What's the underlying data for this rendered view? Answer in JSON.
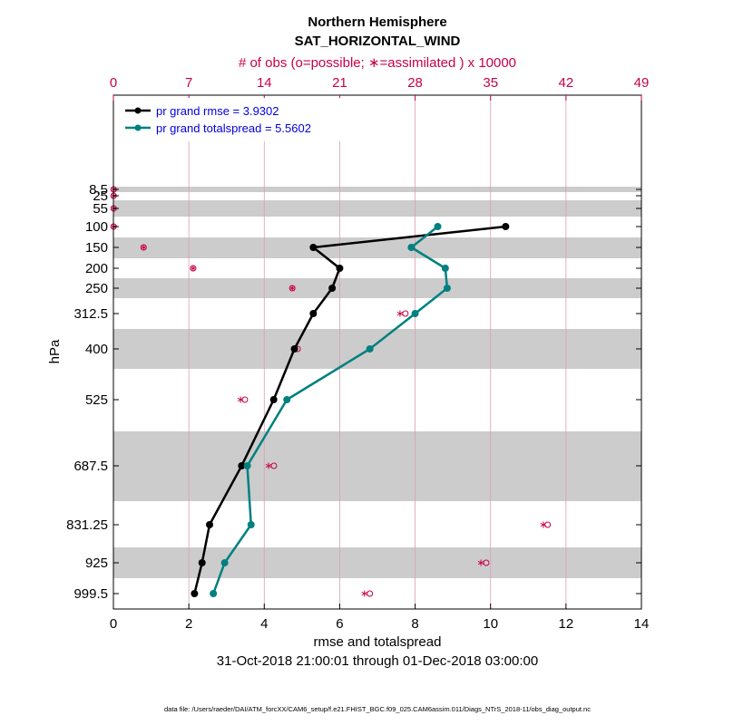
{
  "chart_data": {
    "type": "line",
    "title": "Northern Hemisphere",
    "subtitle": "SAT_HORIZONTAL_WIND",
    "top_axis_label": "# of obs (o=possible; ∗=assimilated ) x 10000",
    "xlabel": "rmse and totalspread",
    "ylabel": "hPa",
    "date_range": "31-Oct-2018 21:00:01 through 01-Dec-2018 03:00:00",
    "footnote": "data file: /Users/raeder/DAI/ATM_forcXX/CAM6_setup/f.e21.FHIST_BGC.f09_025.CAM6assim.011/Diags_NTrS_2018-11/obs_diag_output.nc",
    "xlim": [
      0,
      14
    ],
    "x_ticks": [
      "0",
      "2",
      "4",
      "6",
      "8",
      "10",
      "12",
      "14"
    ],
    "top_xlim": [
      0,
      49
    ],
    "top_ticks": [
      "0",
      "7",
      "14",
      "21",
      "28",
      "35",
      "42",
      "49"
    ],
    "levels": [
      "8.5",
      "25",
      "55",
      "100",
      "150",
      "200",
      "250",
      "312.5",
      "400",
      "525",
      "687.5",
      "831.25",
      "925",
      "999.5"
    ],
    "series": [
      {
        "name": "pr grand rmse = 3.9302",
        "color": "#000000",
        "levels": [
          "100",
          "150",
          "200",
          "250",
          "312.5",
          "400",
          "525",
          "687.5",
          "831.25",
          "925",
          "999.5"
        ],
        "values": [
          10.4,
          5.3,
          6.0,
          5.8,
          5.3,
          4.8,
          4.25,
          3.4,
          2.55,
          2.35,
          2.15
        ]
      },
      {
        "name": "pr grand totalspread = 5.5602",
        "color": "#008080",
        "levels": [
          "100",
          "150",
          "200",
          "250",
          "312.5",
          "400",
          "525",
          "687.5",
          "831.25",
          "925",
          "999.5"
        ],
        "values": [
          8.6,
          7.9,
          8.8,
          8.85,
          8.0,
          6.8,
          4.6,
          3.55,
          3.65,
          2.95,
          2.65
        ]
      }
    ],
    "obs_counts": {
      "color": "#c8004a",
      "levels": [
        "8.5",
        "25",
        "55",
        "100",
        "150",
        "200",
        "250",
        "312.5",
        "400",
        "525",
        "687.5",
        "831.25",
        "925",
        "999.5"
      ],
      "possible": [
        0.02,
        0.02,
        0.02,
        0.02,
        2.8,
        7.4,
        16.6,
        27.1,
        17.1,
        12.2,
        14.9,
        40.3,
        34.6,
        23.8
      ],
      "assimilated": [
        0.02,
        0.02,
        0.02,
        0.02,
        2.8,
        7.4,
        16.6,
        26.6,
        16.8,
        11.8,
        14.4,
        39.9,
        34.1,
        23.3
      ]
    }
  }
}
